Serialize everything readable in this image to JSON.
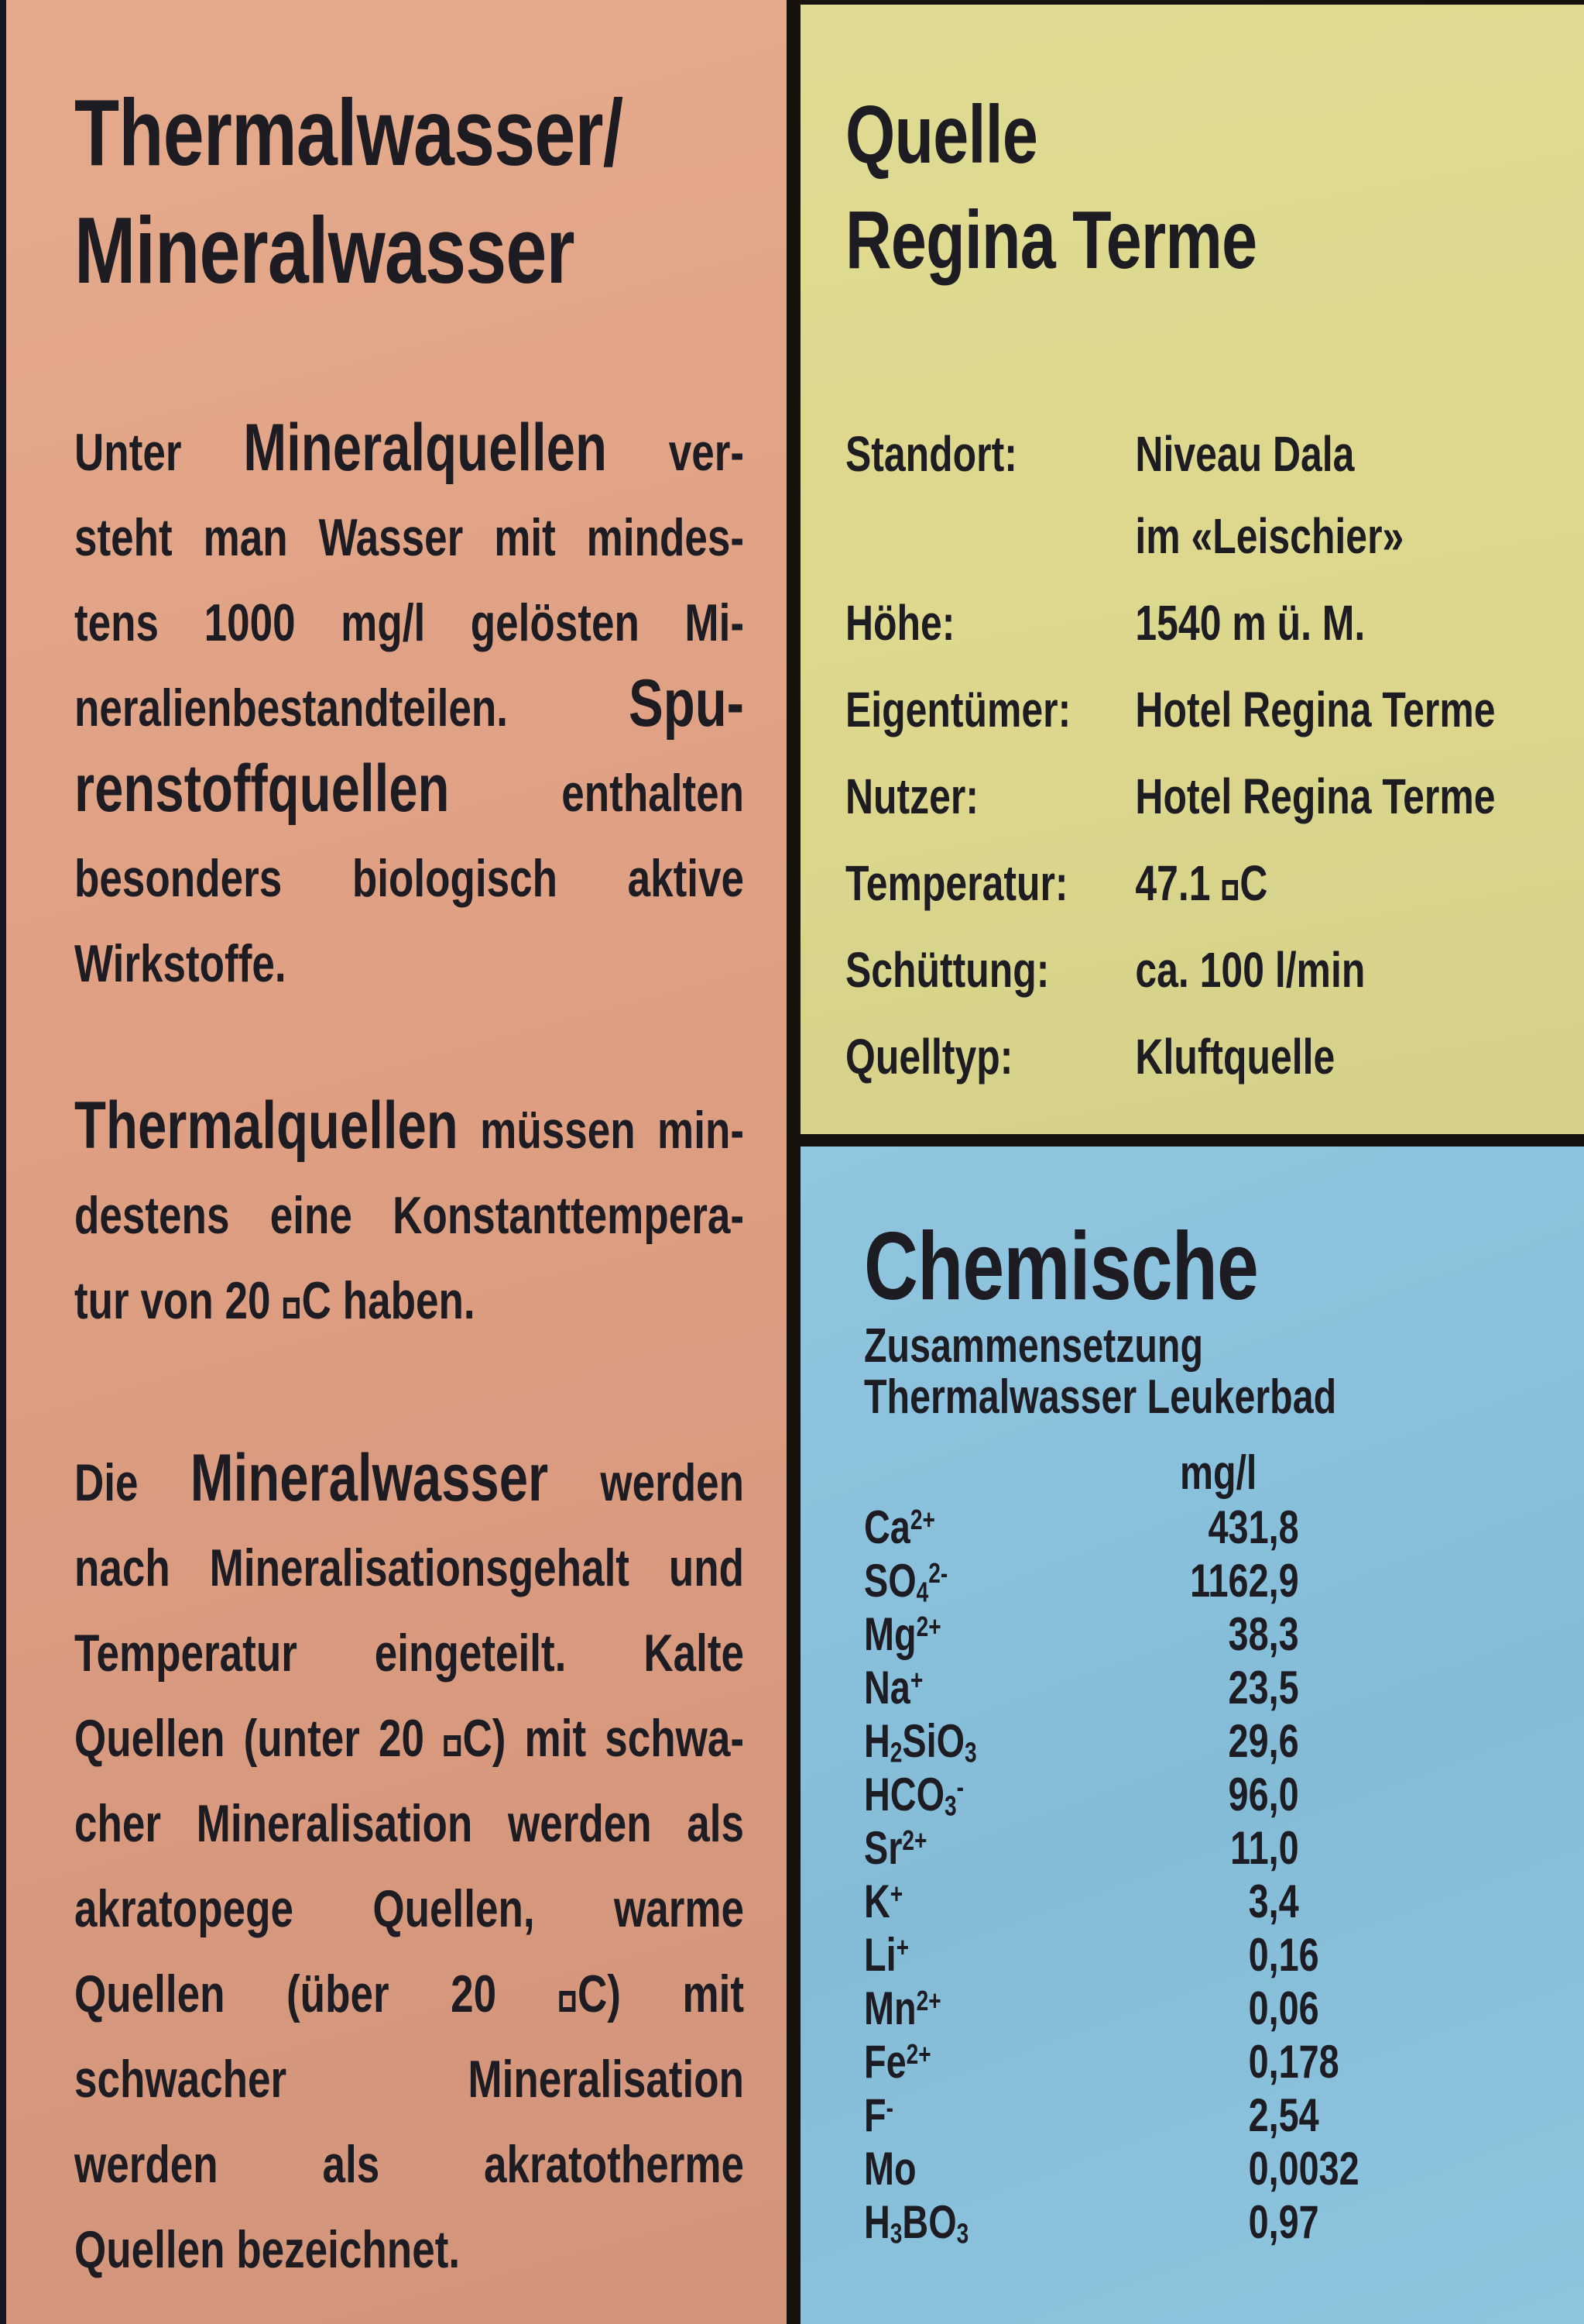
{
  "colors": {
    "left_panel_bg": "#dfa083",
    "top_right_bg": "#dcd78d",
    "bottom_right_bg": "#88c0db",
    "frame": "#18120e",
    "text": "#1d1c22"
  },
  "left_panel": {
    "title_lines": [
      "Thermalwasser/",
      "Mineralwasser"
    ],
    "paragraphs": [
      {
        "lines": [
          {
            "runs": [
              {
                "t": "Unter ",
                "em": false
              },
              {
                "t": "Mineralquellen",
                "em": true
              },
              {
                "t": " ver-",
                "em": false
              }
            ],
            "last": false
          },
          {
            "runs": [
              {
                "t": "steht man Wasser mit mindes-",
                "em": false
              }
            ],
            "last": false
          },
          {
            "runs": [
              {
                "t": "tens 1000 mg/l gelösten Mi-",
                "em": false
              }
            ],
            "last": false
          },
          {
            "runs": [
              {
                "t": "neralienbestandteilen. ",
                "em": false
              },
              {
                "t": "Spu-",
                "em": true
              }
            ],
            "last": false
          },
          {
            "runs": [
              {
                "t": "renstoffquellen",
                "em": true
              },
              {
                "t": " enthalten",
                "em": false
              }
            ],
            "last": false
          },
          {
            "runs": [
              {
                "t": "besonders biologisch aktive",
                "em": false
              }
            ],
            "last": false
          },
          {
            "runs": [
              {
                "t": "Wirkstoffe.",
                "em": false
              }
            ],
            "last": true
          }
        ]
      },
      {
        "lines": [
          {
            "runs": [
              {
                "t": "Thermalquellen",
                "em": true
              },
              {
                "t": " müssen min-",
                "em": false
              }
            ],
            "last": false
          },
          {
            "runs": [
              {
                "t": "destens eine Konstanttempera-",
                "em": false
              }
            ],
            "last": false
          },
          {
            "runs": [
              {
                "t": "tur von 20 □C haben.",
                "em": false
              }
            ],
            "last": true
          }
        ]
      },
      {
        "lines": [
          {
            "runs": [
              {
                "t": "Die ",
                "em": false
              },
              {
                "t": "Mineralwasser",
                "em": true
              },
              {
                "t": " werden",
                "em": false
              }
            ],
            "last": false
          },
          {
            "runs": [
              {
                "t": "nach Mineralisationsgehalt und",
                "em": false
              }
            ],
            "last": false
          },
          {
            "runs": [
              {
                "t": "Temperatur eingeteilt. Kalte",
                "em": false
              }
            ],
            "last": false
          },
          {
            "runs": [
              {
                "t": "Quellen (unter 20 □C) mit schwa-",
                "em": false
              }
            ],
            "last": false
          },
          {
            "runs": [
              {
                "t": "cher Mineralisation werden als",
                "em": false
              }
            ],
            "last": false
          },
          {
            "runs": [
              {
                "t": "akratopege Quellen, warme",
                "em": false
              }
            ],
            "last": false
          },
          {
            "runs": [
              {
                "t": "Quellen (über 20 □C) mit",
                "em": false
              }
            ],
            "last": false
          },
          {
            "runs": [
              {
                "t": "schwacher Mineralisation",
                "em": false
              }
            ],
            "last": false
          },
          {
            "runs": [
              {
                "t": "werden als akratotherme",
                "em": false
              }
            ],
            "last": false
          },
          {
            "runs": [
              {
                "t": "Quellen bezeichnet.",
                "em": false
              }
            ],
            "last": true
          }
        ]
      }
    ]
  },
  "quelle_panel": {
    "title_lines": [
      "Quelle",
      "Regina Terme"
    ],
    "rows": [
      {
        "label": "Standort:",
        "value_lines": [
          "Niveau Dala",
          "im «Leischier»"
        ]
      },
      {
        "label": "Höhe:",
        "value_lines": [
          "1540 m ü. M."
        ]
      },
      {
        "label": "Eigentümer:",
        "value_lines": [
          "Hotel Regina Terme"
        ]
      },
      {
        "label": "Nutzer:",
        "value_lines": [
          "Hotel Regina Terme"
        ]
      },
      {
        "label": "Temperatur:",
        "value_lines": [
          "47.1 □C"
        ]
      },
      {
        "label": "Schüttung:",
        "value_lines": [
          "ca. 100 l/min"
        ]
      },
      {
        "label": "Quelltyp:",
        "value_lines": [
          "Kluftquelle"
        ]
      }
    ]
  },
  "chemie_panel": {
    "title": "Chemische",
    "subtitle_lines": [
      "Zusammensetzung",
      "Thermalwasser Leukerbad"
    ],
    "unit_header": "mg/l",
    "rows": [
      {
        "formula": "Ca^{2+}",
        "value": "431,8"
      },
      {
        "formula": "SO_{4}^{2-}",
        "value": "1162,9"
      },
      {
        "formula": "Mg^{2+}",
        "value": "38,3"
      },
      {
        "formula": "Na^{+}",
        "value": "23,5"
      },
      {
        "formula": "H_{2}SiO_{3}",
        "value": "29,6"
      },
      {
        "formula": "HCO_{3}^{-}",
        "value": "96,0"
      },
      {
        "formula": "Sr^{2+}",
        "value": "11,0"
      },
      {
        "formula": "K^{+}",
        "value": "3,4"
      },
      {
        "formula": "Li^{+}",
        "value": "0,16"
      },
      {
        "formula": "Mn^{2+}",
        "value": "0,06"
      },
      {
        "formula": "Fe^{2+}",
        "value": "0,178"
      },
      {
        "formula": "F^{-}",
        "value": "2,54"
      },
      {
        "formula": "Mo",
        "value": "0,0032"
      },
      {
        "formula": "H_{3}BO_{3}",
        "value": "0,97"
      }
    ]
  }
}
